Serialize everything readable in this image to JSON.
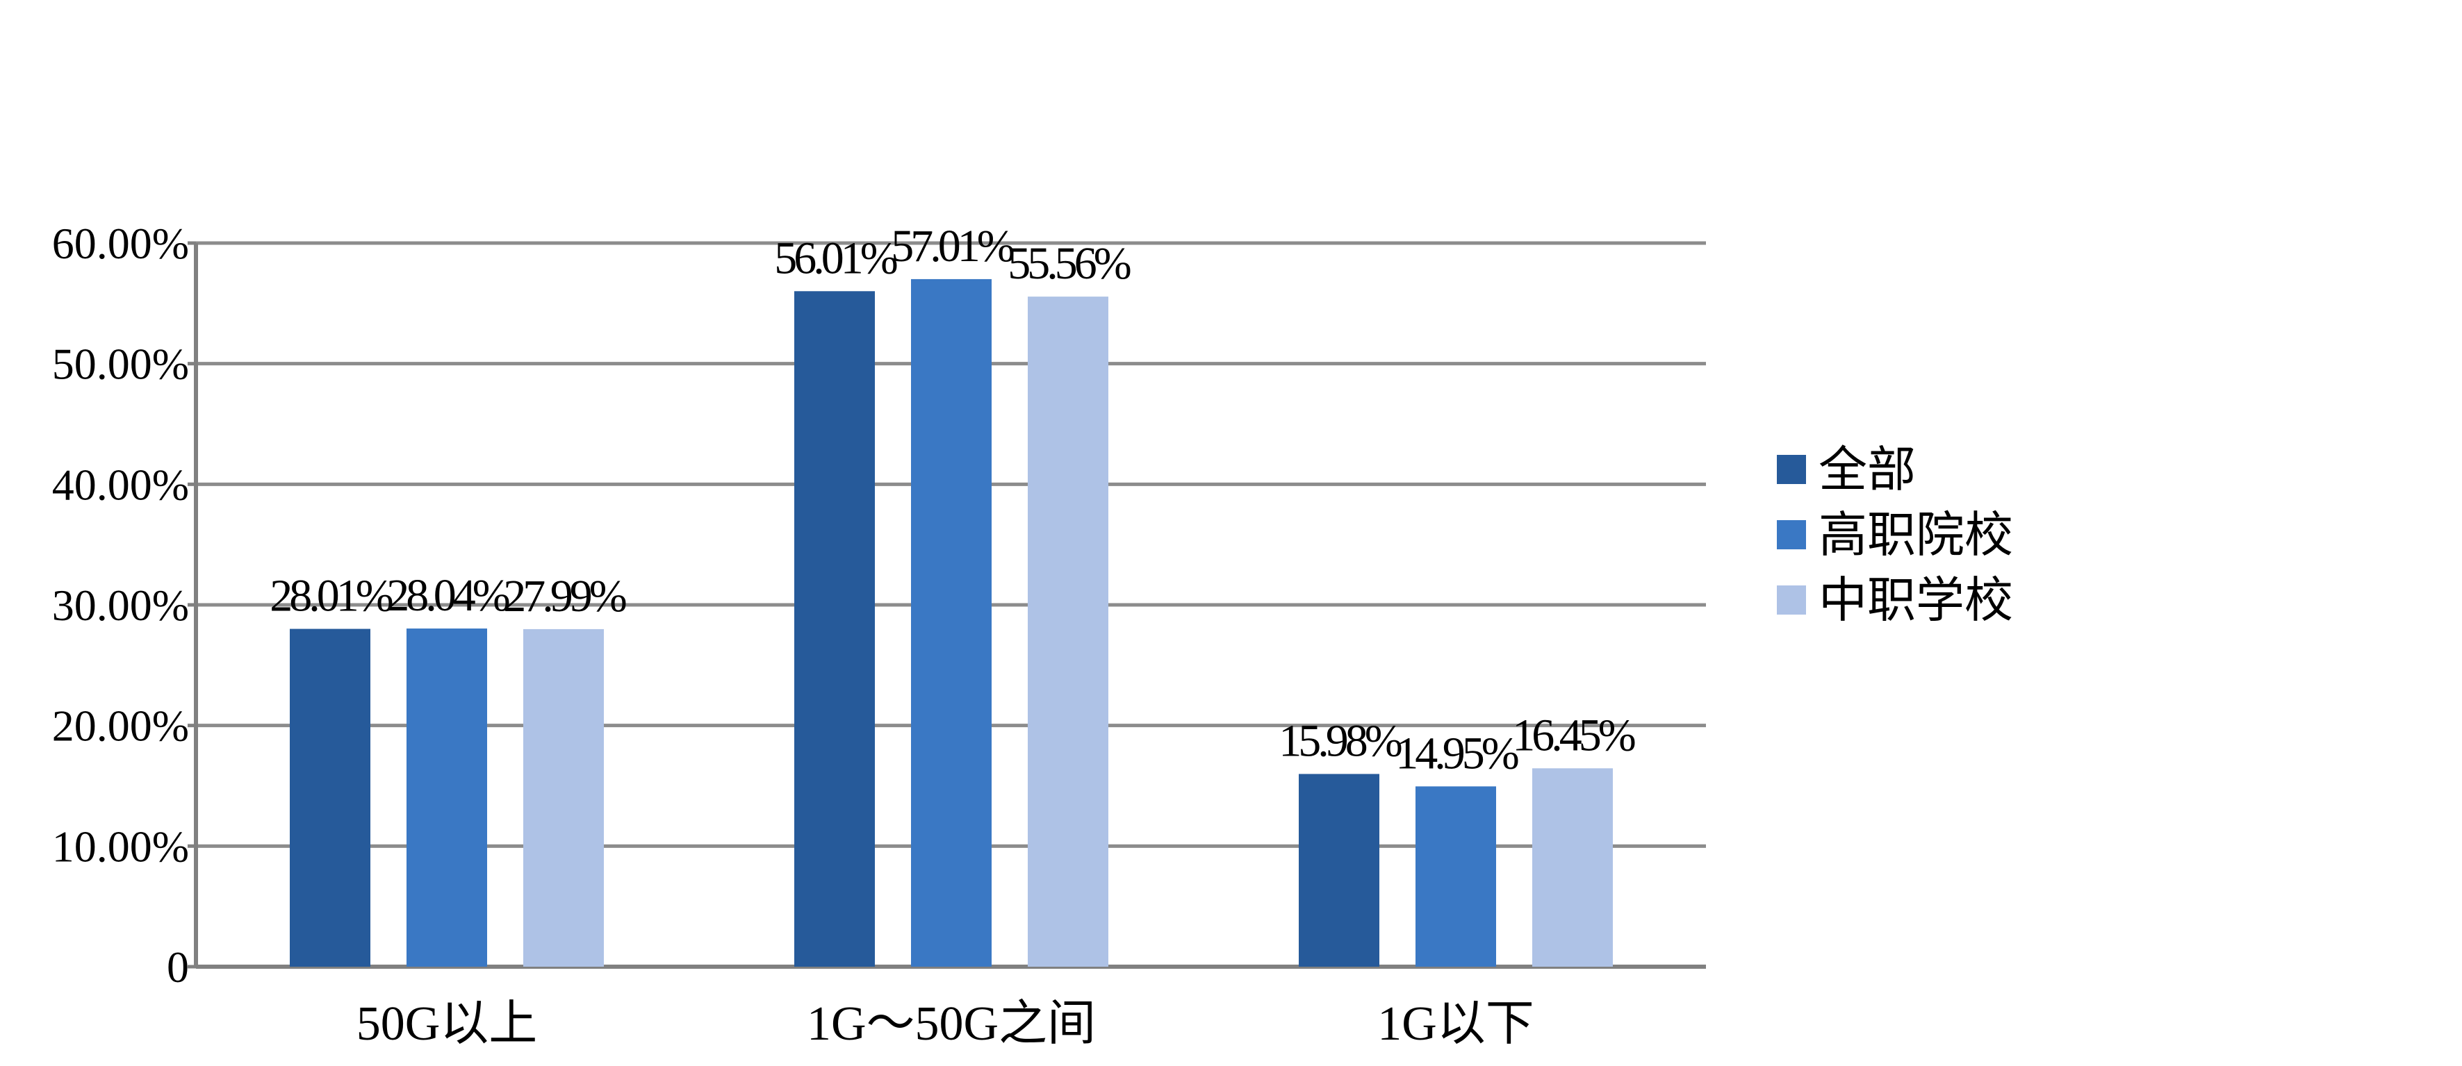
{
  "chart_data": {
    "type": "bar",
    "title": "",
    "xlabel": "",
    "ylabel": "",
    "categories": [
      "50G以上",
      "1G～50G之间",
      "1G以下"
    ],
    "series": [
      {
        "name": "全部",
        "color": "#265A9A",
        "values": [
          28.01,
          56.01,
          15.98
        ],
        "labels": [
          "28.01%",
          "56.01%",
          "15.98%"
        ]
      },
      {
        "name": "高职院校",
        "color": "#3A78C4",
        "values": [
          28.04,
          57.01,
          14.95
        ],
        "labels": [
          "28.04%",
          "57.01%",
          "14.95%"
        ]
      },
      {
        "name": "中职学校",
        "color": "#AEC2E6",
        "values": [
          27.99,
          55.56,
          16.45
        ],
        "labels": [
          "27.99%",
          "55.56%",
          "16.45%"
        ]
      }
    ],
    "ylim": [
      0,
      60
    ],
    "yticks": [
      0,
      10,
      20,
      30,
      40,
      50,
      60
    ],
    "ytick_labels": [
      "0",
      "10.00%",
      "20.00%",
      "30.00%",
      "40.00%",
      "50.00%",
      "60.00%"
    ],
    "grid": true,
    "legend_position": "right"
  }
}
